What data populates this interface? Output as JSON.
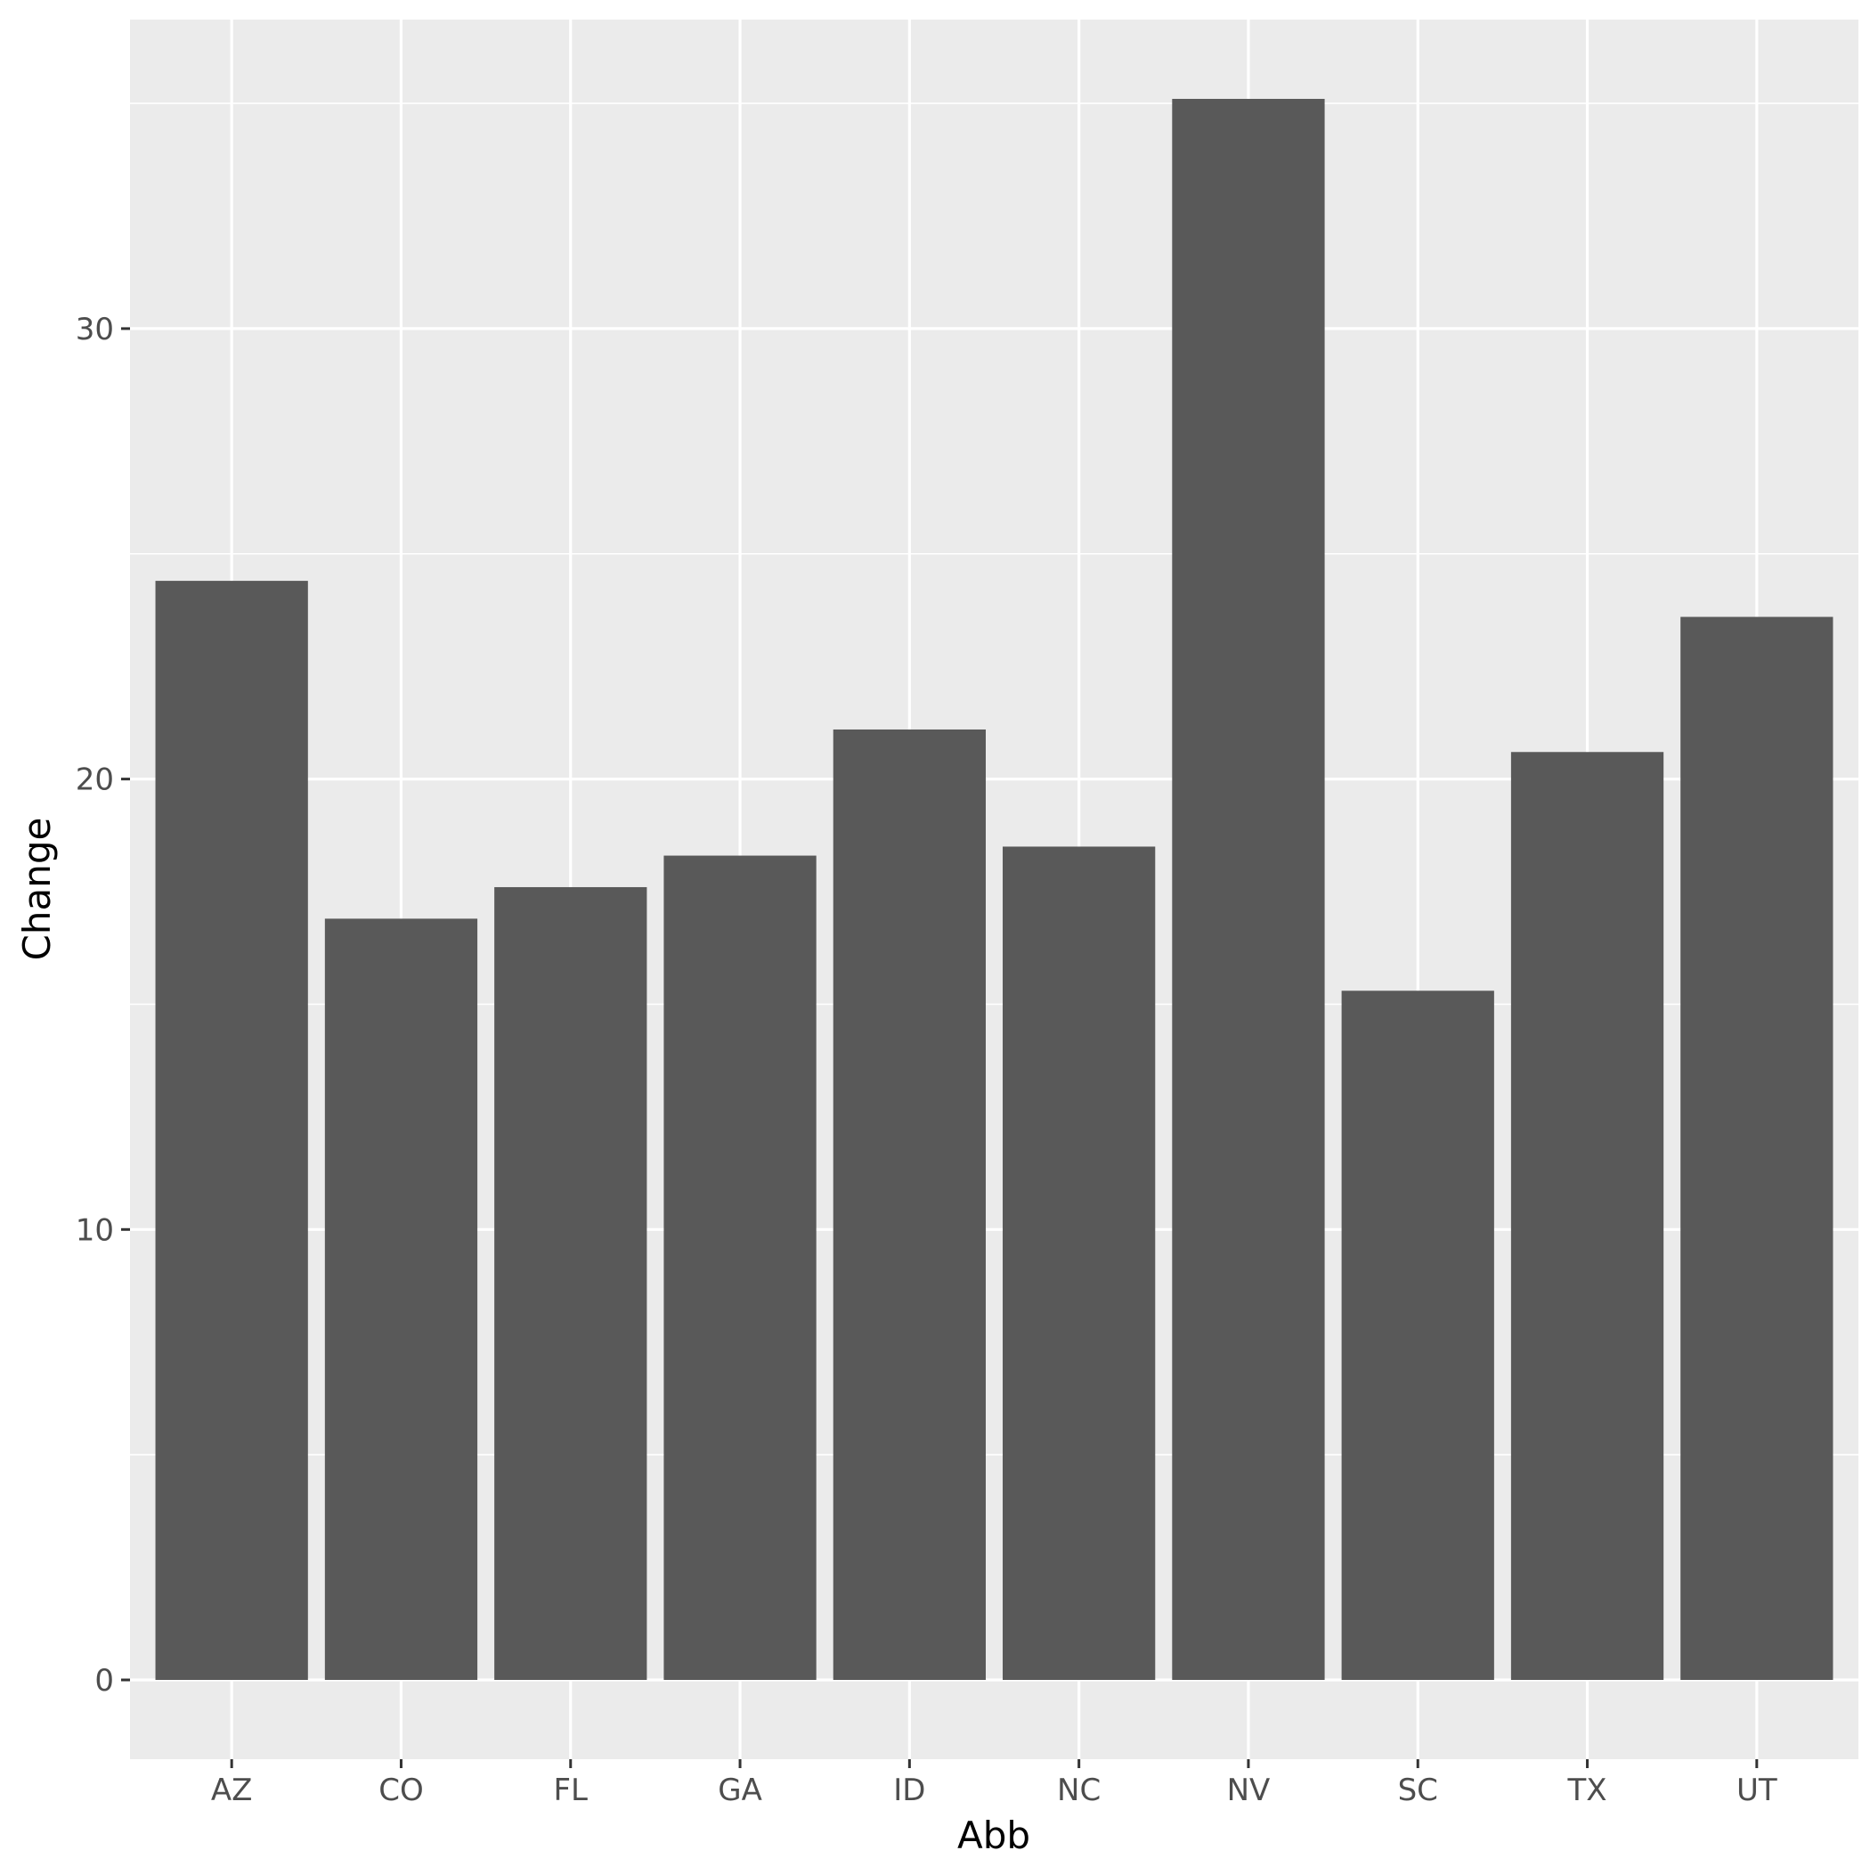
{
  "chart_data": {
    "type": "bar",
    "title": "",
    "xlabel": "Abb",
    "ylabel": "Change",
    "categories": [
      "AZ",
      "CO",
      "FL",
      "GA",
      "ID",
      "NC",
      "NV",
      "SC",
      "TX",
      "UT"
    ],
    "values": [
      24.4,
      16.9,
      17.6,
      18.3,
      21.1,
      18.5,
      35.1,
      15.3,
      20.6,
      23.6
    ],
    "ylim": [
      -1.76,
      36.86
    ],
    "y_ticks": [
      0,
      10,
      20,
      30
    ],
    "grid": true,
    "legend": "none",
    "colors": {
      "bar": "#595959",
      "panel_background": "#ebebeb",
      "grid_line": "#ffffff",
      "page_background": "#ffffff"
    }
  }
}
